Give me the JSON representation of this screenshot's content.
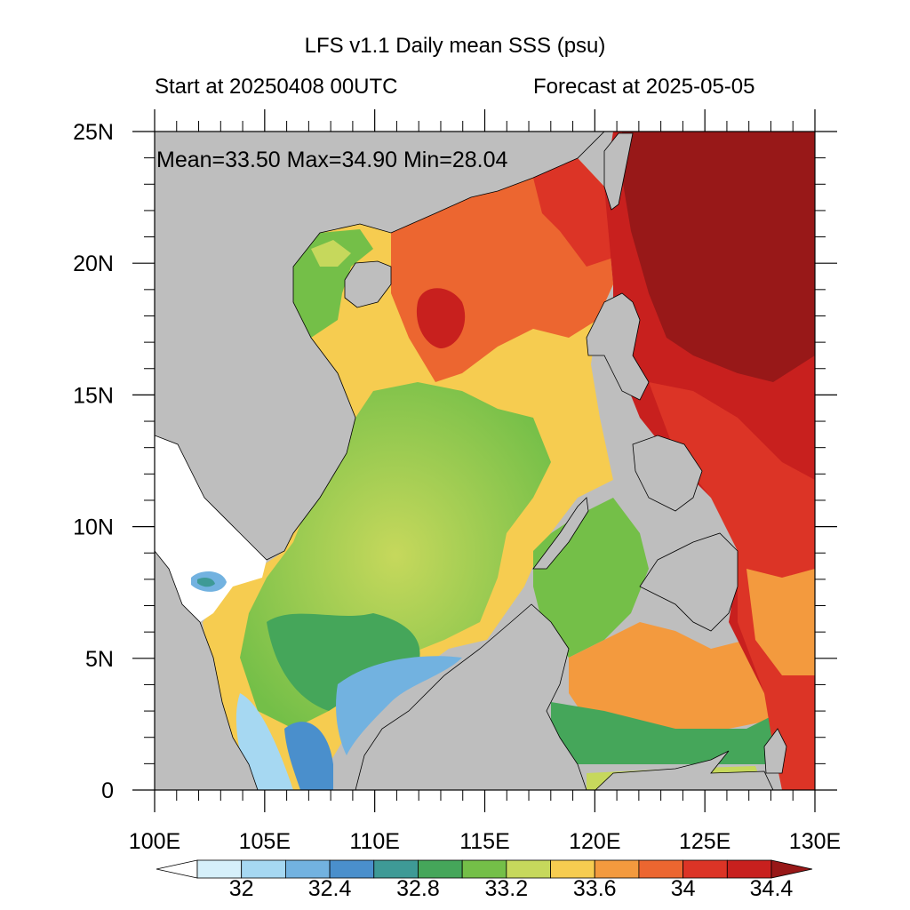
{
  "header": {
    "title": "LFS v1.1 Daily mean SSS (psu)",
    "start": "Start at 20250408 00UTC",
    "forecast": "Forecast at 2025-05-05"
  },
  "stats": {
    "text": "Mean=33.50  Max=34.90  Min=28.04"
  },
  "map": {
    "lon_range": [
      100,
      130
    ],
    "lat_range": [
      0,
      25
    ],
    "land_color": "#bebebe",
    "missing_color": "#ffffff"
  },
  "axes": {
    "x_ticks": [
      {
        "value": 100,
        "label": "100E"
      },
      {
        "value": 105,
        "label": "105E"
      },
      {
        "value": 110,
        "label": "110E"
      },
      {
        "value": 115,
        "label": "115E"
      },
      {
        "value": 120,
        "label": "120E"
      },
      {
        "value": 125,
        "label": "125E"
      },
      {
        "value": 130,
        "label": "130E"
      }
    ],
    "y_ticks": [
      {
        "value": 0,
        "label": "0"
      },
      {
        "value": 5,
        "label": "5N"
      },
      {
        "value": 10,
        "label": "10N"
      },
      {
        "value": 15,
        "label": "15N"
      },
      {
        "value": 20,
        "label": "20N"
      },
      {
        "value": 25,
        "label": "25N"
      }
    ]
  },
  "colorbar": {
    "colors": [
      "#ffffff",
      "#d6f0fa",
      "#a6d8f2",
      "#72b2e0",
      "#4a8fcc",
      "#3e9a96",
      "#45a65a",
      "#74bf48",
      "#c6d85c",
      "#f6cc50",
      "#f39a3e",
      "#ec6630",
      "#dc3426",
      "#c8201e",
      "#981818"
    ],
    "labels": [
      {
        "after_index": 1,
        "text": "32"
      },
      {
        "after_index": 3,
        "text": "32.4"
      },
      {
        "after_index": 5,
        "text": "32.8"
      },
      {
        "after_index": 7,
        "text": "33.2"
      },
      {
        "after_index": 9,
        "text": "33.6"
      },
      {
        "after_index": 11,
        "text": "34"
      },
      {
        "after_index": 13,
        "text": "34.4"
      }
    ]
  }
}
